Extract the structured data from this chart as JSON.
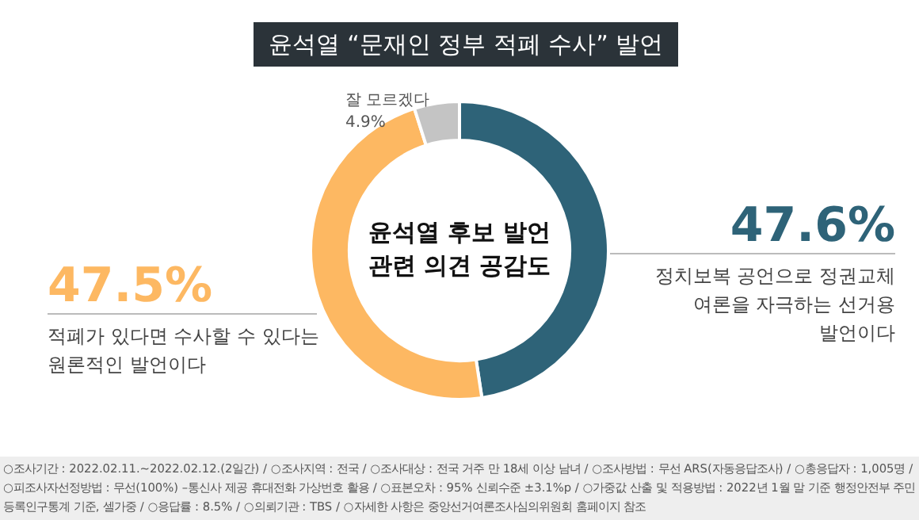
{
  "chart_data": {
    "type": "donut",
    "title": "윤석열 “문재인 정부 적폐 수사” 발언",
    "categories": [
      "정치보복 공언으로 정권교체 여론을 자극하는 선거용 발언이다",
      "적폐가 있다면 수사할 수 있다는 원론적인 발언이다",
      "잘 모르겠다"
    ],
    "values": [
      47.6,
      47.5,
      4.9
    ],
    "colors": [
      "#2e6378",
      "#fdb862",
      "#c4c4c4"
    ],
    "value_labels": [
      "47.6%",
      "47.5%",
      "4.9%"
    ],
    "annotations": [
      "윤석열 후보 발언 관련 의견 공감도",
      "○조사기간 : 2022.02.11.~2022.02.12.(2일간) / ○조사지역 : 전국 / ○조사대상 : 전국 거주 만 18세 이상 남녀 / ○조사방법 : 무선 ARS(자동응답조사) / ○총응답자 : 1,005명 / ○피조사자선정방법 : 무선(100%) –통신사 제공 휴대전화 가상번호 활용 / ○표본오차 : 95% 신뢰수준 ±3.1%p / ○가중값 산출 및 적용방법 : 2022년 1월 말 기준 행정안전부 주민등록인구통계 기준, 셀가중 / ○응답률 : 8.5% / ○의뢰기관 : TBS / ○자세한 사항은 중앙선거여론조사심의위원회 홈페이지 참조"
    ]
  }
}
